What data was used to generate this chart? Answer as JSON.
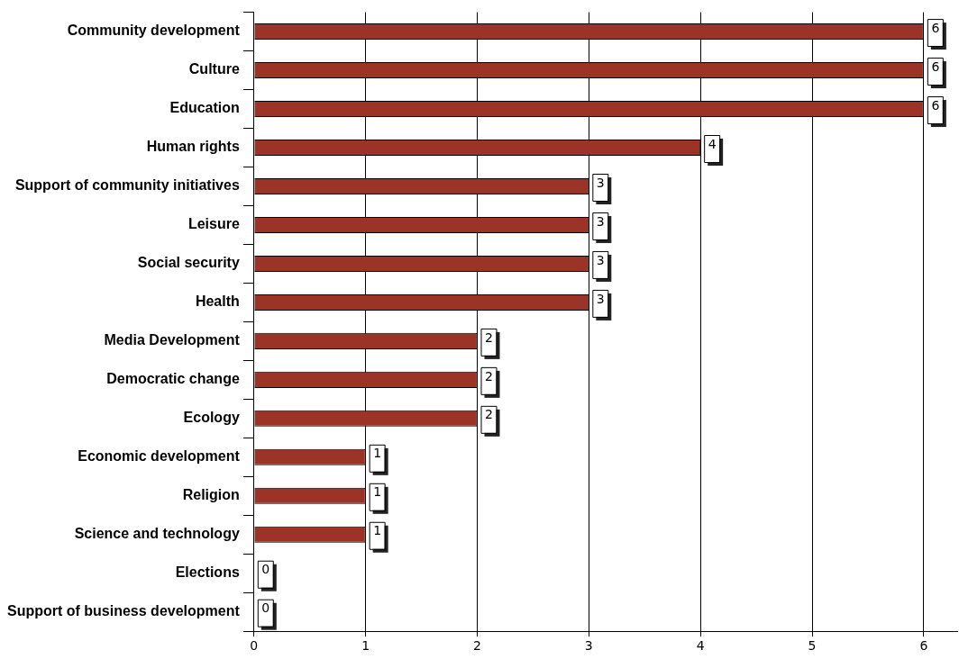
{
  "chart_data": {
    "type": "bar",
    "orientation": "horizontal",
    "categories": [
      "Community development",
      "Culture",
      "Education",
      "Human rights",
      "Support of community initiatives",
      "Leisure",
      "Social security",
      "Health",
      "Media Development",
      "Democratic change",
      "Ecology",
      "Economic development",
      "Religion",
      "Science and technology",
      "Elections",
      "Support of business development"
    ],
    "values": [
      6,
      6,
      6,
      4,
      3,
      3,
      3,
      3,
      2,
      2,
      2,
      1,
      1,
      1,
      0,
      0
    ],
    "color": "#9b3426",
    "xlim": [
      0,
      6.3
    ],
    "xticks": [
      0,
      1,
      2,
      3,
      4,
      5,
      6
    ],
    "grid": "x",
    "legend": false,
    "data_labels": true
  }
}
